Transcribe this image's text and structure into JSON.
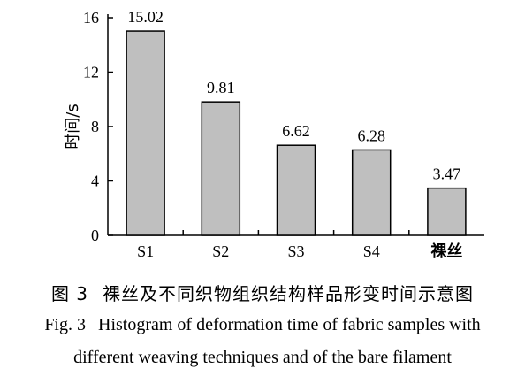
{
  "chart_data": {
    "type": "bar",
    "categories": [
      "S1",
      "S2",
      "S3",
      "S4",
      "裸丝"
    ],
    "values": [
      15.02,
      9.81,
      6.62,
      6.28,
      3.47
    ],
    "data_labels": [
      "15.02",
      "9.81",
      "6.62",
      "6.28",
      "3.47"
    ],
    "ylabel": "时间/s",
    "xlabel": "",
    "ylim": [
      0,
      16
    ],
    "yticks": [
      0,
      4,
      8,
      12,
      16
    ],
    "grid": false,
    "colors": {
      "bar_fill": "#bfbfbf",
      "bar_stroke": "#000000",
      "axis": "#000000"
    }
  },
  "caption": {
    "zh_label": "图 3",
    "zh_text": "裸丝及不同织物组织结构样品形变时间示意图",
    "en_label": "Fig. 3",
    "en_line1": "Histogram of deformation time of fabric samples with",
    "en_line2": "different weaving techniques and of the bare filament"
  }
}
